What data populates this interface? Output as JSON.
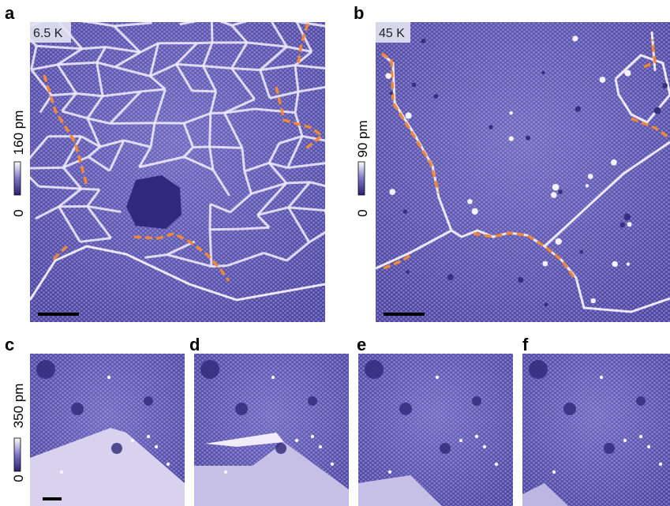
{
  "panels": [
    {
      "label": "a",
      "temperature": "6.5 K",
      "colorbar": {
        "min": "0",
        "max": "160 pm"
      }
    },
    {
      "label": "b",
      "temperature": "45 K",
      "colorbar": {
        "min": "0",
        "max": "90 pm"
      }
    },
    {
      "label": "c",
      "colorbar": {
        "min": "0",
        "max": "350 pm"
      }
    },
    {
      "label": "d"
    },
    {
      "label": "e"
    },
    {
      "label": "f"
    }
  ]
}
